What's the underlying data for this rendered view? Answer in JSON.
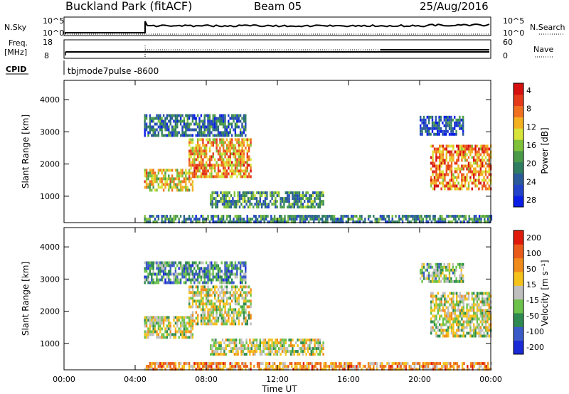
{
  "header": {
    "site": "Buckland Park (fitACF)",
    "beam": "Beam 05",
    "date": "25/Aug/2016"
  },
  "status_panels": {
    "nsky_label": "N.Sky",
    "nsearch_label": "N.Search",
    "nsky_ticks": [
      "10^5",
      "10^0"
    ],
    "nsearch_ticks": [
      "10^5",
      "10^0"
    ],
    "freq_label_1": "Freq.",
    "freq_label_2": "[MHz]",
    "freq_ticks": [
      "18",
      "8"
    ],
    "nave_label": "Nave",
    "nave_ticks": [
      "60",
      "0"
    ],
    "cpid_label": "CPID",
    "cpid_value": "tbjmode7pulse  -8600"
  },
  "chart_data": [
    {
      "type": "heatmap",
      "panel": "power",
      "ylabel": "Slant Range [km]",
      "yticks": [
        "1000",
        "2000",
        "3000",
        "4000"
      ],
      "ylim": [
        180,
        4600
      ],
      "colorbar_label": "Power [dB]",
      "colorbar_ticks": [
        "4",
        "8",
        "12",
        "16",
        "20",
        "24",
        "28"
      ],
      "colors": [
        "#0a1ee6",
        "#2343c8",
        "#2a5a9a",
        "#2f7d60",
        "#4a9a4a",
        "#7fc23a",
        "#d8e43a",
        "#f3b020",
        "#f07020",
        "#e43a1a",
        "#d60f0f"
      ],
      "x_range_hours": [
        0,
        24
      ],
      "regions": [
        {
          "t": [
            4.5,
            10.2
          ],
          "r": [
            2900,
            3550
          ],
          "level": 0.25
        },
        {
          "t": [
            4.5,
            7.2
          ],
          "r": [
            1150,
            1850
          ],
          "level": 0.6
        },
        {
          "t": [
            7.0,
            10.5
          ],
          "r": [
            1600,
            2800
          ],
          "level": 0.7
        },
        {
          "t": [
            8.2,
            14.6
          ],
          "r": [
            700,
            1150
          ],
          "level": 0.35
        },
        {
          "t": [
            20.6,
            24.0
          ],
          "r": [
            1200,
            2600
          ],
          "level": 0.75
        },
        {
          "t": [
            20.0,
            22.4
          ],
          "r": [
            2900,
            3500
          ],
          "level": 0.2
        },
        {
          "t": [
            4.5,
            24.0
          ],
          "r": [
            200,
            420
          ],
          "level": 0.3
        }
      ]
    },
    {
      "type": "heatmap",
      "panel": "velocity",
      "ylabel": "Slant Range [km]",
      "yticks": [
        "1000",
        "2000",
        "3000",
        "4000"
      ],
      "ylim": [
        180,
        4600
      ],
      "colorbar_label": "Velocity [m s⁻¹]",
      "colorbar_ticks": [
        "200",
        "100",
        "50",
        "15",
        "-15",
        "-50",
        "-100",
        "-200"
      ],
      "colors": [
        "#1a2ad6",
        "#3a5ac8",
        "#2e8a50",
        "#6cc24a",
        "#bfbfbf",
        "#f5c21a",
        "#f08a1a",
        "#ea5a1a",
        "#e01a0a"
      ],
      "x_range_hours": [
        0,
        24
      ],
      "regions": [
        {
          "t": [
            4.5,
            10.2
          ],
          "r": [
            2900,
            3550
          ],
          "level": 0.3
        },
        {
          "t": [
            4.5,
            7.2
          ],
          "r": [
            1150,
            1850
          ],
          "level": 0.5
        },
        {
          "t": [
            7.0,
            10.5
          ],
          "r": [
            1600,
            2800
          ],
          "level": 0.5
        },
        {
          "t": [
            8.2,
            14.6
          ],
          "r": [
            700,
            1150
          ],
          "level": 0.5
        },
        {
          "t": [
            20.6,
            24.0
          ],
          "r": [
            1200,
            2600
          ],
          "level": 0.5
        },
        {
          "t": [
            20.0,
            22.4
          ],
          "r": [
            2900,
            3500
          ],
          "level": 0.4
        },
        {
          "t": [
            4.5,
            24.0
          ],
          "r": [
            200,
            420
          ],
          "level": 0.7
        }
      ]
    }
  ],
  "xaxis": {
    "ticks": [
      "00:00",
      "04:00",
      "08:00",
      "12:00",
      "16:00",
      "20:00",
      "00:00"
    ],
    "label": "Time UT"
  }
}
